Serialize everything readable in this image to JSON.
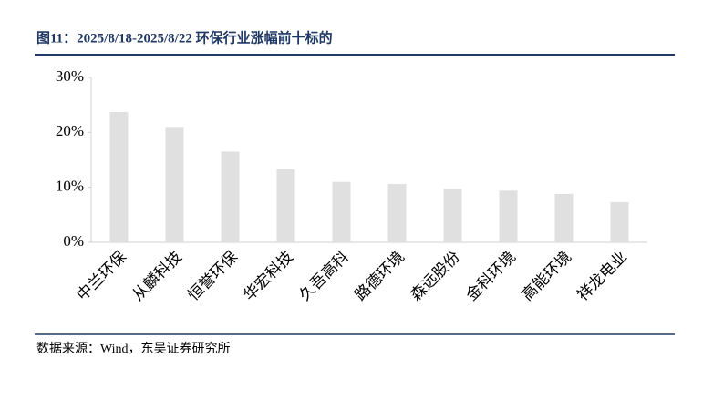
{
  "chart_data": {
    "type": "bar",
    "title": "图11：2025/8/18-2025/8/22 环保行业涨幅前十标的",
    "source": "数据来源：Wind，东吴证券研究所",
    "categories": [
      "中兰环保",
      "从麟科技",
      "恒誉环保",
      "华宏科技",
      "久吾高科",
      "路德环境",
      "森远股份",
      "金科环境",
      "高能环境",
      "祥龙电业"
    ],
    "values": [
      23.7,
      21.0,
      16.5,
      13.3,
      11.0,
      10.6,
      9.7,
      9.4,
      8.8,
      7.3
    ],
    "color": "#e0e0e0",
    "ylim": [
      0,
      30
    ],
    "yticks": [
      {
        "value": 0,
        "label": "0%"
      },
      {
        "value": 10,
        "label": "10%"
      },
      {
        "value": 20,
        "label": "20%"
      },
      {
        "value": 30,
        "label": "30%"
      }
    ],
    "grid": false
  }
}
